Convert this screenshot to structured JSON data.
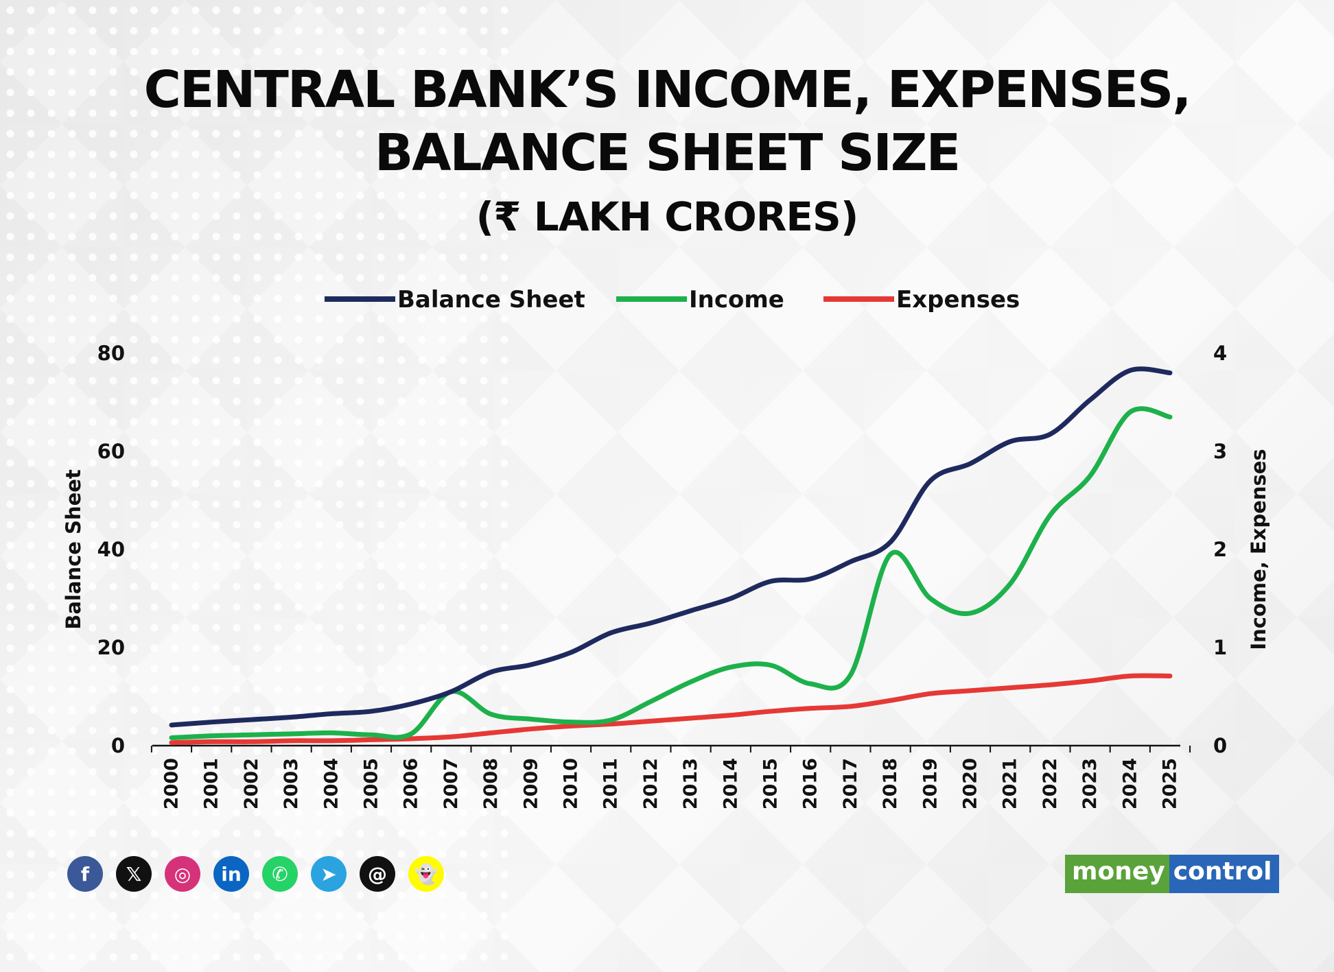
{
  "header": {
    "title_line1": "CENTRAL BANK’S INCOME, EXPENSES,",
    "title_line2": "BALANCE SHEET SIZE",
    "subtitle": "(₹ LAKH CRORES)"
  },
  "chart_data": {
    "type": "line",
    "title": "CENTRAL BANK’S INCOME, EXPENSES, BALANCE SHEET SIZE",
    "subtitle": "(₹ LAKH CRORES)",
    "x": [
      "2000",
      "2001",
      "2002",
      "2003",
      "2004",
      "2005",
      "2006",
      "2007",
      "2008",
      "2009",
      "2010",
      "2011",
      "2012",
      "2013",
      "2014",
      "2015",
      "2016",
      "2017",
      "2018",
      "2019",
      "2020",
      "2021",
      "2022",
      "2023",
      "2024",
      "2025"
    ],
    "y_left_label": "Balance Sheet",
    "y_right_label": "Income, Expenses",
    "y_left_lim": [
      0,
      80
    ],
    "y_right_lim": [
      0,
      4
    ],
    "y_left_ticks": [
      "0",
      "20",
      "40",
      "60",
      "80"
    ],
    "y_right_ticks": [
      "0",
      "1",
      "2",
      "3",
      "4"
    ],
    "legend_position": "top",
    "grid": false,
    "series": [
      {
        "name": "Balance Sheet",
        "axis": "left",
        "color": "#1e2a5e",
        "values": [
          4.2,
          4.8,
          5.3,
          5.8,
          6.5,
          7.0,
          8.5,
          11.0,
          15.0,
          16.5,
          19.0,
          23.0,
          25.0,
          27.5,
          30.0,
          33.5,
          34.0,
          37.5,
          41.5,
          54.0,
          57.5,
          62.0,
          63.5,
          70.5,
          76.5,
          76.0
        ]
      },
      {
        "name": "Income",
        "axis": "right",
        "color": "#1db14b",
        "values": [
          0.08,
          0.1,
          0.11,
          0.12,
          0.13,
          0.11,
          0.12,
          0.55,
          0.32,
          0.27,
          0.24,
          0.26,
          0.45,
          0.65,
          0.8,
          0.82,
          0.63,
          0.72,
          1.95,
          1.5,
          1.35,
          1.65,
          2.35,
          2.75,
          3.4,
          3.35
        ]
      },
      {
        "name": "Expenses",
        "axis": "right",
        "color": "#e53935",
        "values": [
          0.03,
          0.04,
          0.04,
          0.05,
          0.05,
          0.06,
          0.07,
          0.09,
          0.13,
          0.17,
          0.2,
          0.22,
          0.25,
          0.28,
          0.31,
          0.35,
          0.38,
          0.4,
          0.46,
          0.53,
          0.56,
          0.59,
          0.62,
          0.66,
          0.71,
          0.71
        ]
      }
    ]
  },
  "social": {
    "icons": [
      {
        "name": "facebook-icon",
        "glyph": "f",
        "color": "#3b5998"
      },
      {
        "name": "x-icon",
        "glyph": "𝕏",
        "color": "#111111"
      },
      {
        "name": "instagram-icon",
        "glyph": "◎",
        "color": "#d6327a"
      },
      {
        "name": "linkedin-icon",
        "glyph": "in",
        "color": "#0a66c2"
      },
      {
        "name": "whatsapp-icon",
        "glyph": "✆",
        "color": "#25d366"
      },
      {
        "name": "telegram-icon",
        "glyph": "➤",
        "color": "#2aa3e0"
      },
      {
        "name": "threads-icon",
        "glyph": "@",
        "color": "#111111"
      },
      {
        "name": "snapchat-icon",
        "glyph": "👻",
        "color": "#fffc00"
      }
    ]
  },
  "logo": {
    "part1": "money",
    "part2": "control"
  }
}
